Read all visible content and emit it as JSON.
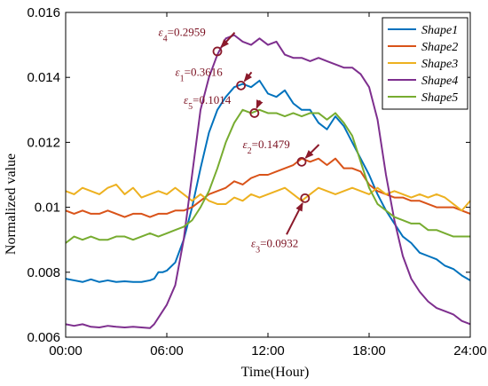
{
  "chart_data": {
    "type": "line",
    "title": "",
    "xlabel": "Time(Hour)",
    "ylabel": "Normalized value",
    "x_range": [
      0,
      24
    ],
    "ylim": [
      0.006,
      0.016
    ],
    "x_ticks": [
      0,
      6,
      12,
      18,
      24
    ],
    "x_tick_labels": [
      "00:00",
      "06:00",
      "12:00",
      "18:00",
      "24:00"
    ],
    "y_ticks": [
      0.006,
      0.008,
      0.01,
      0.012,
      0.014,
      0.016
    ],
    "y_tick_labels": [
      "0.006",
      "0.008",
      "0.01",
      "0.012",
      "0.014",
      "0.016"
    ],
    "grid": false,
    "legend_position": "top-right",
    "annotation_color": "#8b1a2b",
    "series": [
      {
        "name": "Shape1",
        "color": "#0072BD",
        "points": [
          [
            0,
            0.0078
          ],
          [
            0.5,
            0.00775
          ],
          [
            1,
            0.0077
          ],
          [
            1.5,
            0.00778
          ],
          [
            2,
            0.0077
          ],
          [
            2.5,
            0.00775
          ],
          [
            3,
            0.0077
          ],
          [
            3.5,
            0.00772
          ],
          [
            4,
            0.0077
          ],
          [
            4.5,
            0.0077
          ],
          [
            5,
            0.00775
          ],
          [
            5.25,
            0.0078
          ],
          [
            5.5,
            0.008
          ],
          [
            5.75,
            0.008
          ],
          [
            6,
            0.00805
          ],
          [
            6.5,
            0.0083
          ],
          [
            7,
            0.009
          ],
          [
            7.5,
            0.01
          ],
          [
            8,
            0.0112
          ],
          [
            8.5,
            0.0123
          ],
          [
            9,
            0.013
          ],
          [
            9.5,
            0.0134
          ],
          [
            10,
            0.0137
          ],
          [
            10.5,
            0.0138
          ],
          [
            11,
            0.0137
          ],
          [
            11.5,
            0.0139
          ],
          [
            12,
            0.0135
          ],
          [
            12.5,
            0.0134
          ],
          [
            13,
            0.0136
          ],
          [
            13.5,
            0.0132
          ],
          [
            14,
            0.013
          ],
          [
            14.5,
            0.013
          ],
          [
            15,
            0.0126
          ],
          [
            15.5,
            0.0124
          ],
          [
            16,
            0.0128
          ],
          [
            16.5,
            0.0125
          ],
          [
            17,
            0.012
          ],
          [
            17.5,
            0.0115
          ],
          [
            18,
            0.011
          ],
          [
            18.5,
            0.0104
          ],
          [
            19,
            0.0099
          ],
          [
            19.5,
            0.0095
          ],
          [
            20,
            0.0091
          ],
          [
            20.5,
            0.0089
          ],
          [
            21,
            0.0086
          ],
          [
            21.5,
            0.0085
          ],
          [
            22,
            0.0084
          ],
          [
            22.5,
            0.0082
          ],
          [
            23,
            0.0081
          ],
          [
            23.5,
            0.0079
          ],
          [
            24,
            0.00775
          ]
        ]
      },
      {
        "name": "Shape2",
        "color": "#D95319",
        "points": [
          [
            0,
            0.0099
          ],
          [
            0.5,
            0.0098
          ],
          [
            1,
            0.0099
          ],
          [
            1.5,
            0.0098
          ],
          [
            2,
            0.0098
          ],
          [
            2.5,
            0.0099
          ],
          [
            3,
            0.0098
          ],
          [
            3.5,
            0.0097
          ],
          [
            4,
            0.0098
          ],
          [
            4.5,
            0.0098
          ],
          [
            5,
            0.0097
          ],
          [
            5.5,
            0.0098
          ],
          [
            6,
            0.0098
          ],
          [
            6.5,
            0.0099
          ],
          [
            7,
            0.0099
          ],
          [
            7.5,
            0.01
          ],
          [
            8,
            0.0102
          ],
          [
            8.5,
            0.0104
          ],
          [
            9,
            0.0105
          ],
          [
            9.5,
            0.0106
          ],
          [
            10,
            0.0108
          ],
          [
            10.5,
            0.0107
          ],
          [
            11,
            0.0109
          ],
          [
            11.5,
            0.011
          ],
          [
            12,
            0.011
          ],
          [
            12.5,
            0.0111
          ],
          [
            13,
            0.0112
          ],
          [
            13.5,
            0.0113
          ],
          [
            14,
            0.0115
          ],
          [
            14.5,
            0.0114
          ],
          [
            15,
            0.0115
          ],
          [
            15.5,
            0.0113
          ],
          [
            16,
            0.0115
          ],
          [
            16.5,
            0.0112
          ],
          [
            17,
            0.0112
          ],
          [
            17.5,
            0.0111
          ],
          [
            18,
            0.0107
          ],
          [
            18.5,
            0.0105
          ],
          [
            19,
            0.0104
          ],
          [
            19.5,
            0.0103
          ],
          [
            20,
            0.0103
          ],
          [
            20.5,
            0.0102
          ],
          [
            21,
            0.0102
          ],
          [
            21.5,
            0.0101
          ],
          [
            22,
            0.01
          ],
          [
            22.5,
            0.01
          ],
          [
            23,
            0.01
          ],
          [
            23.5,
            0.0099
          ],
          [
            24,
            0.0098
          ]
        ]
      },
      {
        "name": "Shape3",
        "color": "#EDB120",
        "points": [
          [
            0,
            0.0105
          ],
          [
            0.5,
            0.0104
          ],
          [
            1,
            0.0106
          ],
          [
            1.5,
            0.0105
          ],
          [
            2,
            0.0104
          ],
          [
            2.5,
            0.0106
          ],
          [
            3,
            0.0107
          ],
          [
            3.5,
            0.0104
          ],
          [
            4,
            0.0106
          ],
          [
            4.5,
            0.0103
          ],
          [
            5,
            0.0104
          ],
          [
            5.5,
            0.0105
          ],
          [
            6,
            0.0104
          ],
          [
            6.5,
            0.0106
          ],
          [
            7,
            0.0104
          ],
          [
            7.5,
            0.0102
          ],
          [
            8,
            0.0104
          ],
          [
            8.5,
            0.0102
          ],
          [
            9,
            0.0101
          ],
          [
            9.5,
            0.0101
          ],
          [
            10,
            0.0103
          ],
          [
            10.5,
            0.0102
          ],
          [
            11,
            0.0104
          ],
          [
            11.5,
            0.0103
          ],
          [
            12,
            0.0104
          ],
          [
            12.5,
            0.0105
          ],
          [
            13,
            0.0106
          ],
          [
            13.5,
            0.0104
          ],
          [
            14,
            0.0102
          ],
          [
            14.5,
            0.0104
          ],
          [
            15,
            0.0106
          ],
          [
            15.5,
            0.0105
          ],
          [
            16,
            0.0104
          ],
          [
            16.5,
            0.0105
          ],
          [
            17,
            0.0106
          ],
          [
            17.5,
            0.0105
          ],
          [
            18,
            0.0104
          ],
          [
            18.5,
            0.0106
          ],
          [
            19,
            0.0104
          ],
          [
            19.5,
            0.0105
          ],
          [
            20,
            0.0104
          ],
          [
            20.5,
            0.0103
          ],
          [
            21,
            0.0104
          ],
          [
            21.5,
            0.0103
          ],
          [
            22,
            0.0104
          ],
          [
            22.5,
            0.0103
          ],
          [
            23,
            0.0101
          ],
          [
            23.5,
            0.0099
          ],
          [
            24,
            0.0102
          ]
        ]
      },
      {
        "name": "Shape4",
        "color": "#7E2F8E",
        "points": [
          [
            0,
            0.0064
          ],
          [
            0.5,
            0.00635
          ],
          [
            1,
            0.0064
          ],
          [
            1.5,
            0.00632
          ],
          [
            2,
            0.0063
          ],
          [
            2.5,
            0.00635
          ],
          [
            3,
            0.00632
          ],
          [
            3.5,
            0.0063
          ],
          [
            4,
            0.00632
          ],
          [
            4.5,
            0.0063
          ],
          [
            5,
            0.00628
          ],
          [
            5.25,
            0.0064
          ],
          [
            5.5,
            0.0066
          ],
          [
            6,
            0.007
          ],
          [
            6.5,
            0.0076
          ],
          [
            7,
            0.009
          ],
          [
            7.5,
            0.011
          ],
          [
            8,
            0.013
          ],
          [
            8.5,
            0.014
          ],
          [
            9,
            0.0147
          ],
          [
            9.5,
            0.0152
          ],
          [
            10,
            0.0153
          ],
          [
            10.5,
            0.0151
          ],
          [
            11,
            0.015
          ],
          [
            11.5,
            0.0152
          ],
          [
            12,
            0.015
          ],
          [
            12.5,
            0.0151
          ],
          [
            13,
            0.0147
          ],
          [
            13.5,
            0.0146
          ],
          [
            14,
            0.0146
          ],
          [
            14.5,
            0.0145
          ],
          [
            15,
            0.0146
          ],
          [
            15.5,
            0.0145
          ],
          [
            16,
            0.0144
          ],
          [
            16.5,
            0.0143
          ],
          [
            17,
            0.0143
          ],
          [
            17.5,
            0.0141
          ],
          [
            18,
            0.0137
          ],
          [
            18.5,
            0.0127
          ],
          [
            19,
            0.011
          ],
          [
            19.5,
            0.0096
          ],
          [
            20,
            0.0085
          ],
          [
            20.5,
            0.0078
          ],
          [
            21,
            0.0074
          ],
          [
            21.5,
            0.0071
          ],
          [
            22,
            0.0069
          ],
          [
            22.5,
            0.0068
          ],
          [
            23,
            0.0067
          ],
          [
            23.5,
            0.0065
          ],
          [
            24,
            0.0064
          ]
        ]
      },
      {
        "name": "Shape5",
        "color": "#77AC30",
        "points": [
          [
            0,
            0.0089
          ],
          [
            0.5,
            0.0091
          ],
          [
            1,
            0.009
          ],
          [
            1.5,
            0.0091
          ],
          [
            2,
            0.009
          ],
          [
            2.5,
            0.009
          ],
          [
            3,
            0.0091
          ],
          [
            3.5,
            0.0091
          ],
          [
            4,
            0.009
          ],
          [
            4.5,
            0.0091
          ],
          [
            5,
            0.0092
          ],
          [
            5.5,
            0.0091
          ],
          [
            6,
            0.0092
          ],
          [
            6.5,
            0.0093
          ],
          [
            7,
            0.0094
          ],
          [
            7.5,
            0.0096
          ],
          [
            8,
            0.01
          ],
          [
            8.5,
            0.0105
          ],
          [
            9,
            0.0112
          ],
          [
            9.5,
            0.012
          ],
          [
            10,
            0.0126
          ],
          [
            10.5,
            0.013
          ],
          [
            11,
            0.0129
          ],
          [
            11.5,
            0.013
          ],
          [
            12,
            0.0129
          ],
          [
            12.5,
            0.0129
          ],
          [
            13,
            0.0128
          ],
          [
            13.5,
            0.0129
          ],
          [
            14,
            0.0128
          ],
          [
            14.5,
            0.0129
          ],
          [
            15,
            0.0129
          ],
          [
            15.5,
            0.0127
          ],
          [
            16,
            0.0129
          ],
          [
            16.5,
            0.0126
          ],
          [
            17,
            0.0122
          ],
          [
            17.5,
            0.0114
          ],
          [
            18,
            0.0106
          ],
          [
            18.5,
            0.0101
          ],
          [
            19,
            0.0099
          ],
          [
            19.5,
            0.0097
          ],
          [
            20,
            0.0096
          ],
          [
            20.5,
            0.0095
          ],
          [
            21,
            0.0095
          ],
          [
            21.5,
            0.0093
          ],
          [
            22,
            0.0093
          ],
          [
            22.5,
            0.0092
          ],
          [
            23,
            0.0091
          ],
          [
            23.5,
            0.0091
          ],
          [
            24,
            0.0091
          ]
        ]
      }
    ],
    "annotations": [
      {
        "symbol": "ε",
        "sub": "4",
        "value": "=0.2959",
        "point": [
          9,
          0.0148
        ],
        "text_at": [
          5.5,
          0.01527
        ]
      },
      {
        "symbol": "ε",
        "sub": "1",
        "value": "=0.3616",
        "point": [
          10.4,
          0.01375
        ],
        "text_at": [
          6.5,
          0.01405
        ]
      },
      {
        "symbol": "ε",
        "sub": "5",
        "value": "=0.1014",
        "point": [
          11.2,
          0.0129
        ],
        "text_at": [
          7.0,
          0.01318
        ]
      },
      {
        "symbol": "ε",
        "sub": "2",
        "value": "=0.1479",
        "point": [
          14,
          0.0114
        ],
        "text_at": [
          10.5,
          0.01182
        ]
      },
      {
        "symbol": "ε",
        "sub": "3",
        "value": "=0.0932",
        "point": [
          14.2,
          0.01028
        ],
        "text_at": [
          11.0,
          0.00878
        ]
      }
    ]
  }
}
